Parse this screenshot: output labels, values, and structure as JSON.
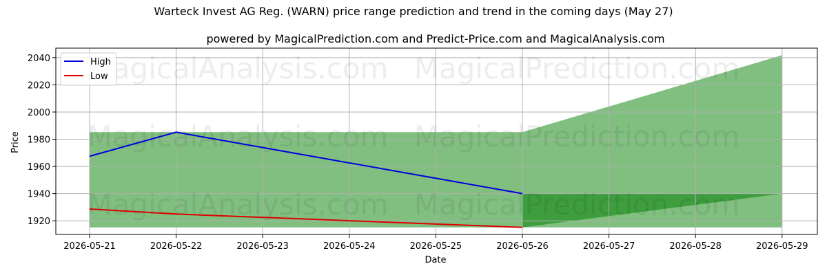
{
  "chart_data": {
    "type": "line",
    "title": "Warteck Invest AG Reg. (WARN) price range prediction and trend in the coming days (May 27)",
    "subtitle": "powered by MagicalPrediction.com and Predict-Price.com and MagicalAnalysis.com",
    "xlabel": "Date",
    "ylabel": "Price",
    "x": [
      "2026-05-21",
      "2026-05-22",
      "2026-05-23",
      "2026-05-24",
      "2026-05-25",
      "2026-05-26",
      "2026-05-27",
      "2026-05-28",
      "2026-05-29"
    ],
    "ylim": [
      1910,
      2047
    ],
    "yticks": [
      1920,
      1940,
      1960,
      1980,
      2000,
      2020,
      2040
    ],
    "grid": true,
    "legend_position": "top-left",
    "series": [
      {
        "name": "High",
        "color": "#0000dd",
        "x": [
          "2026-05-21",
          "2026-05-22",
          "2026-05-26"
        ],
        "values": [
          1967.5,
          1985.2,
          1940.0
        ]
      },
      {
        "name": "Low",
        "color": "#dd0000",
        "x": [
          "2026-05-21",
          "2026-05-22",
          "2026-05-26"
        ],
        "values": [
          1928.7,
          1925.0,
          1915.2
        ]
      }
    ],
    "bands": [
      {
        "color": "#80bf80",
        "x": [
          "2026-05-21",
          "2026-05-26"
        ],
        "upper": [
          1985.2,
          1985.2
        ],
        "lower": [
          1915.2,
          1915.2
        ]
      },
      {
        "color": "#80bf80",
        "x": [
          "2026-05-26",
          "2026-05-29"
        ],
        "upper": [
          1985.2,
          2041.8
        ],
        "lower": [
          1915.2,
          1915.2
        ]
      },
      {
        "color": "#3e9e3e",
        "x": [
          "2026-05-26",
          "2026-05-29"
        ],
        "upper": [
          1940.0,
          1940.0
        ],
        "lower": [
          1915.2,
          1940.0
        ]
      }
    ],
    "watermarks": [
      "MagicalAnalysis.com",
      "MagicalPrediction.com",
      "MagicalAnalysis.com",
      "MagicalPrediction.com",
      "MagicalAnalysis.com",
      "MagicalPrediction.com"
    ]
  }
}
